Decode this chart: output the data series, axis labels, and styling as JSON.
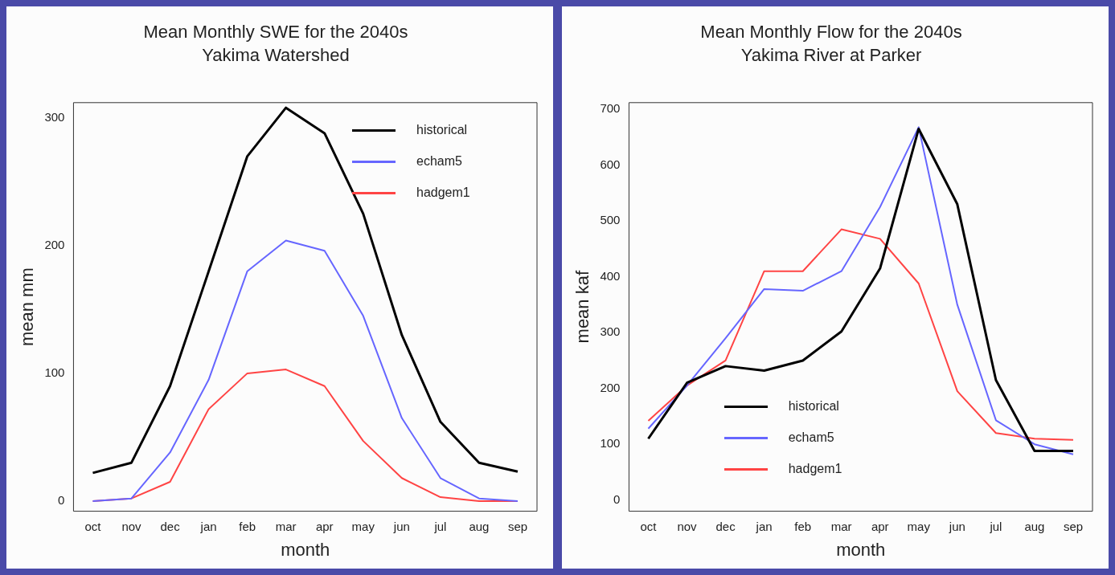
{
  "chart_data": [
    {
      "type": "line",
      "title": "Mean Monthly SWE for the 2040s",
      "subtitle": "Yakima Watershed",
      "xlabel": "month",
      "ylabel": "mean mm",
      "categories": [
        "oct",
        "nov",
        "dec",
        "jan",
        "feb",
        "mar",
        "apr",
        "may",
        "jun",
        "jul",
        "aug",
        "sep"
      ],
      "series": [
        {
          "name": "historical",
          "color": "#000000",
          "values": [
            22,
            30,
            90,
            180,
            270,
            308,
            288,
            225,
            130,
            62,
            30,
            23
          ]
        },
        {
          "name": "echam5",
          "color": "#6666ff",
          "values": [
            0,
            2,
            38,
            95,
            180,
            204,
            196,
            145,
            65,
            18,
            2,
            0
          ]
        },
        {
          "name": "hadgem1",
          "color": "#ff4444",
          "values": [
            0,
            2,
            15,
            72,
            100,
            103,
            90,
            47,
            18,
            3,
            0,
            0
          ]
        }
      ],
      "ylim": [
        -8,
        312
      ],
      "yticks": [
        0,
        100,
        200,
        300
      ],
      "grid": false,
      "legend": "top right",
      "marker": "none"
    },
    {
      "type": "line",
      "title": "Mean Monthly Flow for the 2040s",
      "subtitle": "Yakima River at Parker",
      "xlabel": "month",
      "ylabel": "mean kaf",
      "categories": [
        "oct",
        "nov",
        "dec",
        "jan",
        "feb",
        "mar",
        "apr",
        "may",
        "jun",
        "jul",
        "aug",
        "sep"
      ],
      "series": [
        {
          "name": "historical",
          "color": "#000000",
          "values": [
            110,
            210,
            240,
            232,
            250,
            302,
            415,
            665,
            530,
            215,
            88,
            88
          ]
        },
        {
          "name": "echam5",
          "color": "#6666ff",
          "values": [
            128,
            205,
            290,
            378,
            375,
            410,
            525,
            668,
            350,
            143,
            100,
            82
          ]
        },
        {
          "name": "hadgem1",
          "color": "#ff4444",
          "values": [
            142,
            205,
            250,
            410,
            410,
            485,
            468,
            388,
            195,
            120,
            110,
            108
          ]
        }
      ],
      "ylim": [
        -20,
        712
      ],
      "yticks": [
        0,
        100,
        200,
        300,
        400,
        500,
        600,
        700
      ],
      "grid": false,
      "legend": "bottom",
      "marker": "none"
    }
  ]
}
